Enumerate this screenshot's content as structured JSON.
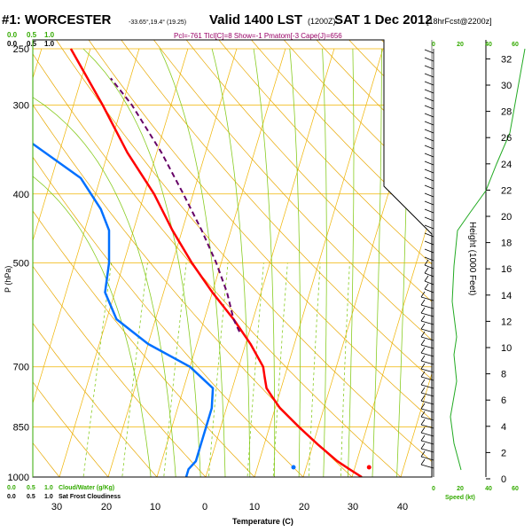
{
  "header": {
    "station": "#1: WORCESTER",
    "coords": "-33.65°,19.4° (19.25)",
    "valid": "Valid 1400 LST",
    "utc": "(1200Z)",
    "date": "SAT 1 Dec 2012",
    "forecast": "[18hrFcst@2200z]",
    "indices": "Pcl=-761 Tlcl[C]=8 Show=-1 Pmatom[-3 Cape(J)=656"
  },
  "colors": {
    "temperature": "#ff0000",
    "dewpoint": "#0070ff",
    "parcel": "#660066",
    "isotherm": "#f0b400",
    "dry_adiabat": "#e8a800",
    "mixing_ratio": "#88cc22",
    "wind_profile": "#22aa22",
    "axis_green": "#33aa00"
  },
  "chart_data": {
    "type": "line",
    "title": "Skew-T sounding",
    "xlabel": "Temperature (C)",
    "ylabel": "P (hPa)",
    "right_ylabel": "Height (1000 Feet)",
    "xlim": [
      -30,
      50
    ],
    "pressure_ticks": [
      250,
      300,
      400,
      500,
      700,
      850,
      1000
    ],
    "temperature_ticks": [
      30,
      20,
      10,
      0,
      10,
      20,
      30,
      40
    ],
    "height_ticks": [
      0,
      2,
      4,
      6,
      8,
      10,
      12,
      14,
      16,
      18,
      20,
      22,
      24,
      26,
      28,
      30,
      32
    ],
    "cloud_scale_top": [
      "0.0",
      "0.5",
      "1.0"
    ],
    "cloud_scale_bottom_label": "Cloud/Water (g/Kg)",
    "cloudiness_label": "Sat Frost Cloudiness",
    "cloud_scale_bottom": [
      "0.0",
      "0.5",
      "1.0"
    ],
    "wind_speed_label": "Speed (kt)",
    "wind_speed_ticks": [
      "0",
      "20",
      "40",
      "60"
    ],
    "series": [
      {
        "name": "Temperature",
        "points": [
          {
            "p": 1000,
            "t": 32
          },
          {
            "p": 975,
            "t": 29
          },
          {
            "p": 950,
            "t": 26
          },
          {
            "p": 900,
            "t": 21
          },
          {
            "p": 850,
            "t": 16
          },
          {
            "p": 800,
            "t": 11
          },
          {
            "p": 775,
            "t": 9
          },
          {
            "p": 750,
            "t": 7
          },
          {
            "p": 725,
            "t": 6
          },
          {
            "p": 700,
            "t": 5
          },
          {
            "p": 650,
            "t": 1
          },
          {
            "p": 600,
            "t": -4
          },
          {
            "p": 550,
            "t": -10
          },
          {
            "p": 500,
            "t": -16
          },
          {
            "p": 450,
            "t": -22
          },
          {
            "p": 400,
            "t": -28
          },
          {
            "p": 350,
            "t": -36
          },
          {
            "p": 300,
            "t": -44
          },
          {
            "p": 250,
            "t": -54
          }
        ]
      },
      {
        "name": "Dewpoint",
        "points": [
          {
            "p": 1000,
            "t": -4
          },
          {
            "p": 975,
            "t": -4
          },
          {
            "p": 950,
            "t": -3
          },
          {
            "p": 900,
            "t": -3
          },
          {
            "p": 850,
            "t": -3
          },
          {
            "p": 800,
            "t": -3
          },
          {
            "p": 750,
            "t": -4
          },
          {
            "p": 700,
            "t": -10
          },
          {
            "p": 650,
            "t": -20
          },
          {
            "p": 600,
            "t": -28
          },
          {
            "p": 550,
            "t": -32
          },
          {
            "p": 500,
            "t": -33
          },
          {
            "p": 450,
            "t": -35
          },
          {
            "p": 420,
            "t": -38
          },
          {
            "p": 380,
            "t": -44
          },
          {
            "p": 340,
            "t": -56
          },
          {
            "p": 300,
            "t": -78
          },
          {
            "p": 285,
            "t": -80
          },
          {
            "p": 270,
            "t": -78
          },
          {
            "p": 250,
            "t": -70
          }
        ]
      },
      {
        "name": "Parcel",
        "points": [
          {
            "p": 625,
            "t": -2
          },
          {
            "p": 600,
            "t": -4
          },
          {
            "p": 550,
            "t": -7
          },
          {
            "p": 500,
            "t": -11
          },
          {
            "p": 450,
            "t": -16
          },
          {
            "p": 400,
            "t": -22
          },
          {
            "p": 350,
            "t": -29
          },
          {
            "p": 300,
            "t": -38
          },
          {
            "p": 275,
            "t": -44
          }
        ]
      }
    ],
    "surface": {
      "temperature": 33.5,
      "dewpoint": 18
    }
  }
}
